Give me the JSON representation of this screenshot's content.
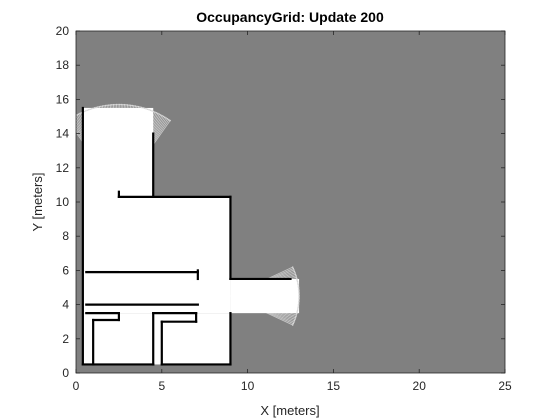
{
  "colors": {
    "unknown": "#808080",
    "free": "#ffffff",
    "occupied": "#000000",
    "axis": "#262626"
  },
  "chart_data": {
    "type": "heatmap",
    "title": "OccupancyGrid: Update 200",
    "xlabel": "X [meters]",
    "ylabel": "Y [meters]",
    "xlim": [
      0,
      25
    ],
    "ylim": [
      0,
      20
    ],
    "xticks": [
      0,
      5,
      10,
      15,
      20,
      25
    ],
    "yticks": [
      0,
      2,
      4,
      6,
      8,
      10,
      12,
      14,
      16,
      18,
      20
    ],
    "grid": false,
    "legend": "none",
    "colormap": "gray (unknown 0.5, free 0, occupied 1)",
    "free_regions": [
      {
        "x": [
          0.4,
          4.5
        ],
        "y": [
          6.0,
          15.5
        ]
      },
      {
        "x": [
          0.4,
          2.5
        ],
        "y": [
          10.3,
          15.5
        ]
      },
      {
        "x": [
          2.5,
          9.0
        ],
        "y": [
          5.5,
          10.3
        ]
      },
      {
        "x": [
          0.4,
          9.0
        ],
        "y": [
          3.5,
          6.0
        ]
      },
      {
        "x": [
          9.0,
          13.0
        ],
        "y": [
          3.5,
          5.5
        ]
      },
      {
        "x": [
          0.4,
          9.0
        ],
        "y": [
          0.5,
          3.5
        ]
      }
    ],
    "occupied_segments": [
      {
        "x": [
          0.4,
          0.4
        ],
        "y": [
          0.5,
          15.5
        ]
      },
      {
        "x": [
          4.5,
          4.5
        ],
        "y": [
          10.3,
          14.0
        ]
      },
      {
        "x": [
          2.5,
          2.5
        ],
        "y": [
          10.3,
          10.6
        ]
      },
      {
        "x": [
          2.5,
          9.0
        ],
        "y": [
          10.3,
          10.3
        ]
      },
      {
        "x": [
          0.6,
          7.1
        ],
        "y": [
          5.9,
          5.9
        ]
      },
      {
        "x": [
          7.1,
          7.1
        ],
        "y": [
          5.5,
          6.0
        ]
      },
      {
        "x": [
          9.0,
          9.0
        ],
        "y": [
          5.5,
          10.3
        ]
      },
      {
        "x": [
          9.0,
          12.5
        ],
        "y": [
          5.5,
          5.5
        ]
      },
      {
        "x": [
          0.6,
          7.1
        ],
        "y": [
          4.0,
          4.0
        ]
      },
      {
        "x": [
          9.0,
          9.0
        ],
        "y": [
          0.5,
          3.5
        ]
      },
      {
        "x": [
          0.6,
          2.5
        ],
        "y": [
          3.5,
          3.5
        ]
      },
      {
        "x": [
          2.5,
          2.5
        ],
        "y": [
          3.1,
          3.5
        ]
      },
      {
        "x": [
          1.0,
          2.5
        ],
        "y": [
          3.1,
          3.1
        ]
      },
      {
        "x": [
          1.0,
          1.0
        ],
        "y": [
          0.5,
          3.1
        ]
      },
      {
        "x": [
          4.5,
          4.5
        ],
        "y": [
          0.5,
          3.5
        ]
      },
      {
        "x": [
          4.5,
          7.0
        ],
        "y": [
          3.5,
          3.5
        ]
      },
      {
        "x": [
          7.0,
          7.0
        ],
        "y": [
          3.0,
          3.5
        ]
      },
      {
        "x": [
          5.0,
          7.0
        ],
        "y": [
          3.0,
          3.0
        ]
      },
      {
        "x": [
          5.0,
          5.0
        ],
        "y": [
          0.5,
          3.0
        ]
      },
      {
        "x": [
          0.4,
          4.5
        ],
        "y": [
          0.5,
          0.5
        ]
      },
      {
        "x": [
          5.0,
          9.0
        ],
        "y": [
          0.5,
          0.5
        ]
      }
    ],
    "sensor_fans": [
      {
        "origin": [
          2.5,
          10.5
        ],
        "angle_range_deg": [
          55,
          125
        ],
        "range": 5.2,
        "rays": 70
      },
      {
        "origin": [
          9.0,
          4.5
        ],
        "angle_range_deg": [
          -25,
          25
        ],
        "range": 4.0,
        "rays": 40
      }
    ]
  }
}
